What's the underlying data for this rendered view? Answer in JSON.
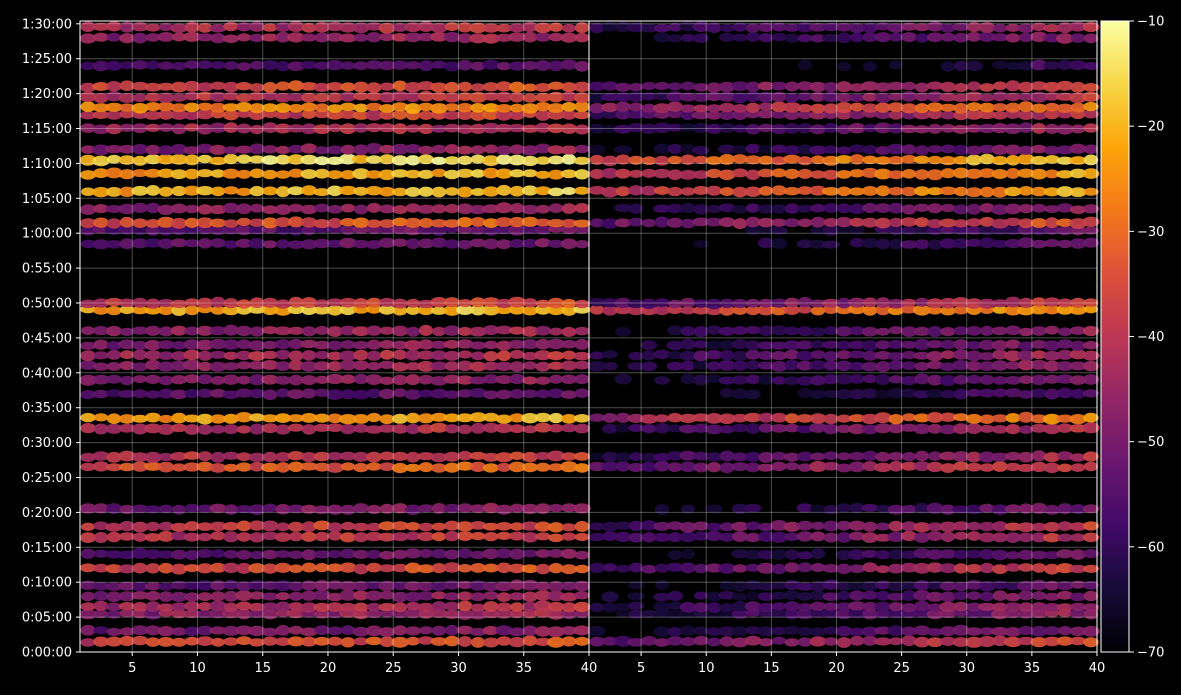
{
  "chart_data": {
    "type": "heatmap",
    "title": "",
    "panels": [
      {
        "id": "left",
        "xlim": [
          1,
          40
        ],
        "x_ticks": [
          "5",
          "10",
          "15",
          "20",
          "25",
          "30",
          "35",
          "40"
        ],
        "x_tick_values": [
          5,
          10,
          15,
          20,
          25,
          30,
          35,
          40
        ]
      },
      {
        "id": "right",
        "xlim": [
          1,
          40
        ],
        "x_ticks": [
          "5",
          "10",
          "15",
          "20",
          "25",
          "30",
          "35",
          "40"
        ],
        "x_tick_values": [
          5,
          10,
          15,
          20,
          25,
          30,
          35,
          40
        ]
      }
    ],
    "y_axis": {
      "ticks": [
        "0:00:00",
        "0:05:00",
        "0:10:00",
        "0:15:00",
        "0:20:00",
        "0:25:00",
        "0:30:00",
        "0:35:00",
        "0:40:00",
        "0:45:00",
        "0:50:00",
        "0:55:00",
        "1:00:00",
        "1:05:00",
        "1:10:00",
        "1:15:00",
        "1:20:00",
        "1:25:00",
        "1:30:00"
      ],
      "tick_minutes": [
        0,
        5,
        10,
        15,
        20,
        25,
        30,
        35,
        40,
        45,
        50,
        55,
        60,
        65,
        70,
        75,
        80,
        85,
        90
      ],
      "ylim_minutes": [
        0,
        90.4
      ]
    },
    "colorbar": {
      "colormap": "inferno",
      "range": [
        -70,
        -10
      ],
      "ticks": [
        "−70",
        "−60",
        "−50",
        "−40",
        "−30",
        "−20",
        "−10"
      ],
      "tick_values": [
        -70,
        -60,
        -50,
        -40,
        -30,
        -20,
        -10
      ]
    },
    "grid": true,
    "bands_minutes_db": [
      {
        "t": 1.5,
        "left": -38,
        "right": -40
      },
      {
        "t": 3.0,
        "left": -52,
        "right": -52
      },
      {
        "t": 5.5,
        "left": -48,
        "right": -50
      },
      {
        "t": 6.5,
        "left": -45,
        "right": -48
      },
      {
        "t": 8.0,
        "left": -50,
        "right": -52
      },
      {
        "t": 9.5,
        "left": -55,
        "right": -56
      },
      {
        "t": 12.0,
        "left": -38,
        "right": -42
      },
      {
        "t": 14.0,
        "left": -55,
        "right": -56
      },
      {
        "t": 16.5,
        "left": -42,
        "right": -44
      },
      {
        "t": 18.0,
        "left": -40,
        "right": -42
      },
      {
        "t": 20.5,
        "left": -52,
        "right": -55
      },
      {
        "t": 26.5,
        "left": -35,
        "right": -40
      },
      {
        "t": 28.0,
        "left": -42,
        "right": -46
      },
      {
        "t": 32.0,
        "left": -44,
        "right": -46
      },
      {
        "t": 33.5,
        "left": -25,
        "right": -30
      },
      {
        "t": 37.0,
        "left": -56,
        "right": -58
      },
      {
        "t": 39.0,
        "left": -50,
        "right": -52
      },
      {
        "t": 41.0,
        "left": -48,
        "right": -50
      },
      {
        "t": 42.5,
        "left": -45,
        "right": -47
      },
      {
        "t": 44.0,
        "left": -50,
        "right": -52
      },
      {
        "t": 46.0,
        "left": -48,
        "right": -50
      },
      {
        "t": 49.0,
        "left": -22,
        "right": -26
      },
      {
        "t": 50.0,
        "left": -40,
        "right": -42
      },
      {
        "t": 58.5,
        "left": -55,
        "right": -56
      },
      {
        "t": 60.5,
        "left": -56,
        "right": -58
      },
      {
        "t": 61.5,
        "left": -36,
        "right": -38
      },
      {
        "t": 63.5,
        "left": -48,
        "right": -50
      },
      {
        "t": 66.0,
        "left": -22,
        "right": -25
      },
      {
        "t": 68.5,
        "left": -24,
        "right": -26
      },
      {
        "t": 70.5,
        "left": -18,
        "right": -22
      },
      {
        "t": 72.0,
        "left": -50,
        "right": -52
      },
      {
        "t": 75.0,
        "left": -45,
        "right": -48
      },
      {
        "t": 77.0,
        "left": -40,
        "right": -42
      },
      {
        "t": 78.0,
        "left": -28,
        "right": -32
      },
      {
        "t": 79.5,
        "left": -42,
        "right": -44
      },
      {
        "t": 81.0,
        "left": -38,
        "right": -40
      },
      {
        "t": 84.0,
        "left": -58,
        "right": -62
      },
      {
        "t": 88.0,
        "left": -48,
        "right": -52
      },
      {
        "t": 89.5,
        "left": -44,
        "right": -48
      }
    ]
  }
}
